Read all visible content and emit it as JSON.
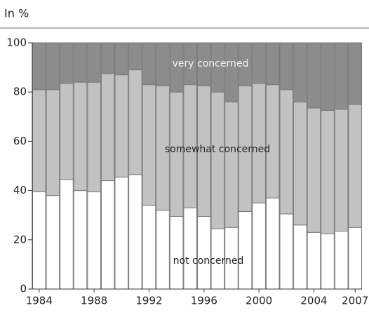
{
  "chart_data": {
    "type": "stacked_bar",
    "subtitle": "In %",
    "categories": [
      1984,
      null,
      null,
      null,
      1988,
      null,
      null,
      null,
      1992,
      null,
      null,
      null,
      1996,
      null,
      null,
      null,
      2000,
      null,
      null,
      null,
      2004,
      null,
      null,
      2007
    ],
    "series": [
      {
        "name": "not concerned",
        "color": "#ffffff",
        "values": [
          39.5,
          38,
          44.5,
          40,
          39.5,
          44,
          45.5,
          46.5,
          34,
          32,
          29.5,
          33,
          29.5,
          24.5,
          25,
          31.5,
          35,
          37,
          30.5,
          26,
          23,
          22.5,
          23.5,
          25
        ]
      },
      {
        "name": "somewhat concerned",
        "color": "#c2c2c2",
        "values": [
          41.5,
          43,
          39,
          44,
          44.5,
          43.5,
          41.5,
          42.5,
          49,
          50.5,
          50.5,
          50,
          53,
          55.5,
          51,
          51,
          48.5,
          46,
          50.5,
          50,
          50.5,
          50,
          49.5,
          50
        ]
      },
      {
        "name": "very concerned",
        "color": "#8c8c8c",
        "values": [
          19,
          19,
          16.5,
          16,
          16,
          12.5,
          13,
          11,
          17,
          17.5,
          20,
          17,
          17.5,
          20,
          24,
          17.5,
          16.5,
          17,
          19,
          24,
          26.5,
          27.5,
          27,
          25
        ]
      }
    ],
    "ylim": [
      0,
      100
    ],
    "yticks": [
      0,
      20,
      40,
      60,
      80,
      100
    ]
  }
}
